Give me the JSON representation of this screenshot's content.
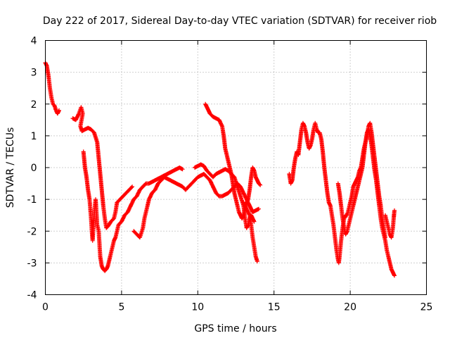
{
  "chart_data": {
    "type": "scatter",
    "title": "Day 222 of 2017, Sidereal Day-to-day VTEC variation (SDTVAR) for receiver riob",
    "xlabel": "GPS time / hours",
    "ylabel": "SDTVAR / TECUs",
    "xlim": [
      0,
      25
    ],
    "ylim": [
      -4,
      4
    ],
    "x_ticks": [
      0,
      5,
      10,
      15,
      20,
      25
    ],
    "y_ticks": [
      -4,
      -3,
      -2,
      -1,
      0,
      1,
      2,
      3,
      4
    ],
    "grid": true,
    "marker": "+",
    "series_color": "#ff0000",
    "traces": [
      [
        [
          0.0,
          3.3
        ],
        [
          0.1,
          3.2
        ],
        [
          0.2,
          2.9
        ],
        [
          0.3,
          2.5
        ],
        [
          0.4,
          2.2
        ],
        [
          0.5,
          2.0
        ],
        [
          0.6,
          1.95
        ],
        [
          0.7,
          1.8
        ],
        [
          0.8,
          1.7
        ],
        [
          0.9,
          1.8
        ]
      ],
      [
        [
          1.8,
          1.55
        ],
        [
          2.0,
          1.5
        ],
        [
          2.2,
          1.7
        ],
        [
          2.35,
          1.9
        ],
        [
          2.45,
          1.7
        ],
        [
          2.3,
          1.3
        ],
        [
          2.4,
          1.15
        ],
        [
          2.6,
          1.2
        ],
        [
          2.8,
          1.25
        ],
        [
          3.0,
          1.2
        ],
        [
          3.2,
          1.1
        ],
        [
          3.4,
          0.8
        ],
        [
          3.5,
          0.3
        ],
        [
          3.6,
          -0.2
        ],
        [
          3.7,
          -0.7
        ],
        [
          3.8,
          -1.2
        ],
        [
          3.9,
          -1.6
        ],
        [
          4.0,
          -1.9
        ],
        [
          4.1,
          -1.85
        ],
        [
          4.3,
          -1.7
        ],
        [
          4.5,
          -1.6
        ],
        [
          4.6,
          -1.4
        ],
        [
          4.7,
          -1.1
        ],
        [
          4.9,
          -1.0
        ],
        [
          5.1,
          -0.9
        ],
        [
          5.3,
          -0.8
        ],
        [
          5.5,
          -0.7
        ],
        [
          5.7,
          -0.6
        ]
      ],
      [
        [
          2.5,
          0.5
        ],
        [
          2.6,
          0.0
        ],
        [
          2.7,
          -0.3
        ],
        [
          2.8,
          -0.7
        ],
        [
          2.9,
          -1.0
        ],
        [
          3.0,
          -1.6
        ],
        [
          3.05,
          -2.0
        ],
        [
          3.1,
          -2.3
        ],
        [
          3.2,
          -1.5
        ],
        [
          3.3,
          -1.0
        ],
        [
          3.35,
          -1.4
        ],
        [
          3.4,
          -1.8
        ],
        [
          3.5,
          -2.0
        ],
        [
          3.55,
          -2.4
        ],
        [
          3.6,
          -2.8
        ],
        [
          3.7,
          -3.1
        ],
        [
          3.8,
          -3.2
        ],
        [
          3.9,
          -3.25
        ],
        [
          4.0,
          -3.2
        ],
        [
          4.1,
          -3.1
        ],
        [
          4.2,
          -2.9
        ],
        [
          4.3,
          -2.7
        ],
        [
          4.4,
          -2.5
        ],
        [
          4.5,
          -2.3
        ],
        [
          4.6,
          -2.2
        ],
        [
          4.7,
          -2.0
        ],
        [
          4.8,
          -1.8
        ],
        [
          5.0,
          -1.7
        ],
        [
          5.2,
          -1.5
        ],
        [
          5.4,
          -1.4
        ],
        [
          5.6,
          -1.2
        ],
        [
          5.8,
          -1.0
        ],
        [
          6.0,
          -0.9
        ],
        [
          6.2,
          -0.7
        ],
        [
          6.4,
          -0.6
        ],
        [
          6.6,
          -0.5
        ],
        [
          6.8,
          -0.5
        ],
        [
          7.0,
          -0.45
        ],
        [
          7.2,
          -0.4
        ],
        [
          7.4,
          -0.35
        ],
        [
          7.6,
          -0.3
        ],
        [
          7.8,
          -0.25
        ],
        [
          8.0,
          -0.2
        ],
        [
          8.2,
          -0.15
        ],
        [
          8.4,
          -0.1
        ],
        [
          8.6,
          -0.05
        ],
        [
          8.8,
          0.0
        ],
        [
          9.0,
          -0.05
        ]
      ],
      [
        [
          5.8,
          -2.0
        ],
        [
          6.0,
          -2.1
        ],
        [
          6.2,
          -2.2
        ],
        [
          6.4,
          -1.9
        ],
        [
          6.5,
          -1.6
        ],
        [
          6.6,
          -1.4
        ],
        [
          6.7,
          -1.2
        ],
        [
          6.8,
          -1.0
        ],
        [
          7.0,
          -0.8
        ],
        [
          7.2,
          -0.7
        ],
        [
          7.4,
          -0.5
        ],
        [
          7.6,
          -0.4
        ],
        [
          7.8,
          -0.3
        ],
        [
          8.0,
          -0.35
        ],
        [
          8.2,
          -0.4
        ],
        [
          8.4,
          -0.45
        ],
        [
          8.6,
          -0.5
        ],
        [
          8.8,
          -0.55
        ],
        [
          9.0,
          -0.6
        ],
        [
          9.2,
          -0.7
        ],
        [
          9.4,
          -0.6
        ],
        [
          9.6,
          -0.5
        ],
        [
          9.8,
          -0.4
        ],
        [
          10.0,
          -0.3
        ],
        [
          10.2,
          -0.25
        ],
        [
          10.4,
          -0.2
        ],
        [
          10.6,
          -0.3
        ],
        [
          10.8,
          -0.4
        ],
        [
          11.0,
          -0.6
        ],
        [
          11.2,
          -0.8
        ],
        [
          11.4,
          -0.9
        ],
        [
          11.6,
          -0.9
        ],
        [
          11.8,
          -0.85
        ],
        [
          12.0,
          -0.8
        ],
        [
          12.2,
          -0.7
        ],
        [
          12.4,
          -0.6
        ],
        [
          12.6,
          -0.5
        ],
        [
          12.8,
          -0.6
        ],
        [
          13.0,
          -0.8
        ],
        [
          13.2,
          -1.0
        ],
        [
          13.4,
          -1.2
        ],
        [
          13.5,
          -1.3
        ],
        [
          13.6,
          -1.4
        ],
        [
          13.8,
          -1.35
        ],
        [
          14.0,
          -1.3
        ]
      ],
      [
        [
          9.8,
          0.0
        ],
        [
          10.0,
          0.05
        ],
        [
          10.2,
          0.1
        ],
        [
          10.4,
          0.05
        ],
        [
          10.6,
          -0.1
        ],
        [
          10.8,
          -0.2
        ],
        [
          11.0,
          -0.3
        ],
        [
          11.2,
          -0.2
        ],
        [
          11.4,
          -0.15
        ],
        [
          11.6,
          -0.1
        ],
        [
          11.8,
          -0.05
        ],
        [
          12.0,
          -0.1
        ],
        [
          12.2,
          -0.2
        ],
        [
          12.4,
          -0.3
        ],
        [
          12.6,
          -0.6
        ],
        [
          12.8,
          -0.9
        ],
        [
          13.0,
          -1.2
        ],
        [
          13.1,
          -1.6
        ],
        [
          13.2,
          -1.9
        ],
        [
          13.3,
          -1.8
        ],
        [
          13.4,
          -1.6
        ],
        [
          13.5,
          -1.5
        ],
        [
          13.6,
          -1.6
        ],
        [
          13.7,
          -1.7
        ]
      ],
      [
        [
          10.5,
          2.0
        ],
        [
          10.6,
          1.9
        ],
        [
          10.7,
          1.8
        ],
        [
          10.8,
          1.7
        ],
        [
          10.9,
          1.65
        ],
        [
          11.0,
          1.6
        ],
        [
          11.2,
          1.55
        ],
        [
          11.4,
          1.5
        ],
        [
          11.6,
          1.3
        ],
        [
          11.7,
          1.0
        ],
        [
          11.8,
          0.6
        ],
        [
          11.9,
          0.4
        ],
        [
          12.0,
          0.2
        ],
        [
          12.1,
          0.0
        ],
        [
          12.2,
          -0.2
        ],
        [
          12.3,
          -0.5
        ],
        [
          12.4,
          -0.8
        ],
        [
          12.5,
          -1.0
        ],
        [
          12.6,
          -1.2
        ],
        [
          12.7,
          -1.4
        ],
        [
          12.8,
          -1.5
        ],
        [
          12.9,
          -1.6
        ],
        [
          13.0,
          -1.5
        ],
        [
          13.1,
          -1.3
        ],
        [
          13.2,
          -1.1
        ],
        [
          13.3,
          -1.0
        ],
        [
          13.4,
          -0.7
        ],
        [
          13.5,
          -0.3
        ],
        [
          13.6,
          0.0
        ],
        [
          13.7,
          -0.1
        ],
        [
          13.8,
          -0.3
        ],
        [
          13.9,
          -0.4
        ],
        [
          14.0,
          -0.5
        ],
        [
          14.1,
          -0.55
        ]
      ],
      [
        [
          13.0,
          -1.1
        ],
        [
          13.2,
          -1.3
        ],
        [
          13.4,
          -1.5
        ],
        [
          13.5,
          -1.8
        ],
        [
          13.6,
          -2.2
        ],
        [
          13.7,
          -2.5
        ],
        [
          13.8,
          -2.8
        ],
        [
          13.9,
          -2.95
        ]
      ],
      [
        [
          16.0,
          -0.2
        ],
        [
          16.1,
          -0.5
        ],
        [
          16.2,
          -0.4
        ],
        [
          16.3,
          0.0
        ],
        [
          16.4,
          0.3
        ],
        [
          16.5,
          0.5
        ],
        [
          16.6,
          0.4
        ],
        [
          16.7,
          0.8
        ],
        [
          16.8,
          1.2
        ],
        [
          16.9,
          1.4
        ],
        [
          17.0,
          1.3
        ],
        [
          17.1,
          1.1
        ],
        [
          17.2,
          0.8
        ],
        [
          17.3,
          0.6
        ],
        [
          17.4,
          0.7
        ],
        [
          17.5,
          0.9
        ],
        [
          17.6,
          1.2
        ],
        [
          17.7,
          1.4
        ],
        [
          17.8,
          1.2
        ],
        [
          17.9,
          1.1
        ],
        [
          18.0,
          1.1
        ],
        [
          18.1,
          0.9
        ],
        [
          18.2,
          0.5
        ],
        [
          18.3,
          0.0
        ],
        [
          18.4,
          -0.4
        ],
        [
          18.5,
          -0.8
        ],
        [
          18.6,
          -1.1
        ],
        [
          18.7,
          -1.2
        ],
        [
          18.8,
          -1.5
        ],
        [
          18.9,
          -1.8
        ],
        [
          19.0,
          -2.2
        ],
        [
          19.1,
          -2.6
        ],
        [
          19.2,
          -2.9
        ],
        [
          19.25,
          -3.0
        ],
        [
          19.3,
          -2.8
        ],
        [
          19.4,
          -2.3
        ],
        [
          19.5,
          -1.9
        ],
        [
          19.6,
          -1.6
        ],
        [
          19.7,
          -1.5
        ],
        [
          19.8,
          -1.5
        ],
        [
          19.9,
          -1.3
        ],
        [
          20.0,
          -1.1
        ],
        [
          20.1,
          -0.9
        ],
        [
          20.2,
          -0.6
        ],
        [
          20.3,
          -0.5
        ],
        [
          20.4,
          -0.4
        ],
        [
          20.5,
          -0.3
        ],
        [
          20.6,
          -0.1
        ],
        [
          20.7,
          0.0
        ],
        [
          20.8,
          0.3
        ],
        [
          20.9,
          0.6
        ],
        [
          21.0,
          0.8
        ],
        [
          21.1,
          1.0
        ],
        [
          21.2,
          1.3
        ],
        [
          21.3,
          1.4
        ],
        [
          21.4,
          1.1
        ],
        [
          21.5,
          0.7
        ],
        [
          21.6,
          0.3
        ],
        [
          21.7,
          -0.1
        ],
        [
          21.8,
          -0.5
        ],
        [
          21.9,
          -0.9
        ],
        [
          22.0,
          -1.2
        ],
        [
          22.1,
          -1.6
        ],
        [
          22.2,
          -1.9
        ],
        [
          22.3,
          -2.2
        ]
      ],
      [
        [
          19.2,
          -0.5
        ],
        [
          19.3,
          -0.8
        ],
        [
          19.4,
          -1.2
        ],
        [
          19.5,
          -1.6
        ],
        [
          19.6,
          -1.9
        ],
        [
          19.7,
          -2.1
        ],
        [
          19.8,
          -2.0
        ],
        [
          19.9,
          -1.8
        ],
        [
          20.0,
          -1.6
        ],
        [
          20.1,
          -1.4
        ],
        [
          20.2,
          -1.2
        ],
        [
          20.3,
          -1.0
        ],
        [
          20.4,
          -0.8
        ],
        [
          20.5,
          -0.6
        ],
        [
          20.6,
          -0.4
        ],
        [
          20.7,
          -0.2
        ],
        [
          20.8,
          0.0
        ],
        [
          20.9,
          0.4
        ],
        [
          21.0,
          0.8
        ],
        [
          21.1,
          1.1
        ],
        [
          21.2,
          1.2
        ],
        [
          21.3,
          1.0
        ],
        [
          21.4,
          0.7
        ],
        [
          21.5,
          0.3
        ],
        [
          21.6,
          -0.1
        ],
        [
          21.7,
          -0.4
        ],
        [
          21.8,
          -0.8
        ],
        [
          21.9,
          -1.2
        ],
        [
          22.0,
          -1.6
        ],
        [
          22.1,
          -1.9
        ],
        [
          22.2,
          -2.1
        ],
        [
          22.3,
          -2.3
        ],
        [
          22.4,
          -2.6
        ],
        [
          22.5,
          -2.8
        ],
        [
          22.6,
          -3.0
        ],
        [
          22.7,
          -3.2
        ],
        [
          22.8,
          -3.3
        ],
        [
          22.9,
          -3.4
        ]
      ],
      [
        [
          22.3,
          -1.5
        ],
        [
          22.4,
          -1.7
        ],
        [
          22.5,
          -1.9
        ],
        [
          22.6,
          -2.1
        ],
        [
          22.7,
          -2.2
        ],
        [
          22.8,
          -1.9
        ],
        [
          22.85,
          -1.6
        ],
        [
          22.9,
          -1.35
        ]
      ]
    ]
  }
}
